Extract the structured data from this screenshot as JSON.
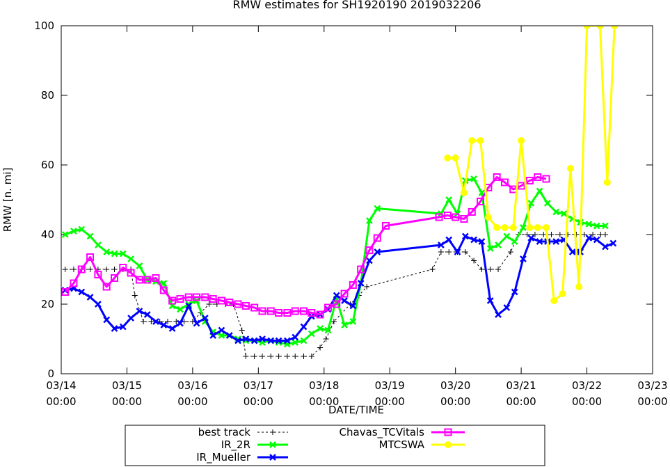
{
  "chart_data": {
    "type": "line",
    "title": "RMW estimates for SH1920190 2019032206",
    "xlabel": "DATE/TIME",
    "ylabel": "RMW [n. mi]",
    "xlim": [
      0,
      9
    ],
    "ylim": [
      0,
      100
    ],
    "grid": false,
    "legend_position": "bottom",
    "x_ticks": [
      {
        "value": 0,
        "line1": "03/14",
        "line2": "00:00"
      },
      {
        "value": 1,
        "line1": "03/15",
        "line2": "00:00"
      },
      {
        "value": 2,
        "line1": "03/16",
        "line2": "00:00"
      },
      {
        "value": 3,
        "line1": "03/17",
        "line2": "00:00"
      },
      {
        "value": 4,
        "line1": "03/18",
        "line2": "00:00"
      },
      {
        "value": 5,
        "line1": "03/19",
        "line2": "00:00"
      },
      {
        "value": 6,
        "line1": "03/20",
        "line2": "00:00"
      },
      {
        "value": 7,
        "line1": "03/21",
        "line2": "00:00"
      },
      {
        "value": 8,
        "line1": "03/22",
        "line2": "00:00"
      },
      {
        "value": 9,
        "line1": "03/23",
        "line2": "00:00"
      }
    ],
    "y_ticks": [
      0,
      20,
      40,
      60,
      80,
      100
    ],
    "series": [
      {
        "name": "best track",
        "color": "#000000",
        "marker": "plus",
        "dashed": true,
        "points": [
          [
            0.06,
            30
          ],
          [
            0.19,
            30
          ],
          [
            0.31,
            30
          ],
          [
            0.44,
            30
          ],
          [
            0.56,
            30
          ],
          [
            0.69,
            30
          ],
          [
            0.81,
            30
          ],
          [
            0.94,
            30
          ],
          [
            1.06,
            30
          ],
          [
            1.12,
            22.5
          ],
          [
            1.25,
            15
          ],
          [
            1.37,
            15
          ],
          [
            1.5,
            15
          ],
          [
            1.62,
            15
          ],
          [
            1.75,
            15
          ],
          [
            1.87,
            15
          ],
          [
            2,
            15
          ],
          [
            2.12,
            17.5
          ],
          [
            2.25,
            20
          ],
          [
            2.37,
            20
          ],
          [
            2.5,
            20
          ],
          [
            2.62,
            20
          ],
          [
            2.75,
            12.5
          ],
          [
            2.81,
            5
          ],
          [
            2.94,
            5
          ],
          [
            3.06,
            5
          ],
          [
            3.19,
            5
          ],
          [
            3.31,
            5
          ],
          [
            3.44,
            5
          ],
          [
            3.56,
            5
          ],
          [
            3.69,
            5
          ],
          [
            3.81,
            5
          ],
          [
            3.94,
            7.5
          ],
          [
            4.03,
            10
          ],
          [
            4.15,
            15
          ],
          [
            4.4,
            20
          ],
          [
            4.53,
            22.5
          ],
          [
            4.65,
            25
          ],
          [
            5.65,
            30
          ],
          [
            5.78,
            35
          ],
          [
            5.9,
            35
          ],
          [
            6.03,
            35
          ],
          [
            6.15,
            35
          ],
          [
            6.28,
            32.5
          ],
          [
            6.4,
            30
          ],
          [
            6.53,
            30
          ],
          [
            6.65,
            30
          ],
          [
            6.84,
            35
          ],
          [
            6.96,
            40
          ],
          [
            7.09,
            40
          ],
          [
            7.21,
            40
          ],
          [
            7.34,
            40
          ],
          [
            7.46,
            40
          ],
          [
            7.59,
            40
          ],
          [
            7.71,
            40
          ],
          [
            7.84,
            40
          ],
          [
            7.96,
            40
          ],
          [
            8.09,
            40
          ],
          [
            8.21,
            40
          ],
          [
            8.28,
            40
          ]
        ]
      },
      {
        "name": "IR_2R",
        "color": "#00ff00",
        "marker": "x",
        "dashed": false,
        "points": [
          [
            0.06,
            40
          ],
          [
            0.19,
            41
          ],
          [
            0.31,
            41.5
          ],
          [
            0.44,
            39.5
          ],
          [
            0.56,
            37
          ],
          [
            0.69,
            35
          ],
          [
            0.81,
            34.5
          ],
          [
            0.94,
            34.5
          ],
          [
            1.06,
            33
          ],
          [
            1.19,
            31
          ],
          [
            1.31,
            27
          ],
          [
            1.44,
            26.5
          ],
          [
            1.56,
            26
          ],
          [
            1.69,
            19.5
          ],
          [
            1.81,
            18.5
          ],
          [
            1.94,
            20
          ],
          [
            2.06,
            21
          ],
          [
            2.19,
            15
          ],
          [
            2.31,
            12
          ],
          [
            2.44,
            11
          ],
          [
            2.56,
            11
          ],
          [
            2.69,
            10
          ],
          [
            2.81,
            9.5
          ],
          [
            2.94,
            9.5
          ],
          [
            3.06,
            9
          ],
          [
            3.19,
            9.5
          ],
          [
            3.31,
            9
          ],
          [
            3.44,
            8.5
          ],
          [
            3.56,
            9
          ],
          [
            3.69,
            9.5
          ],
          [
            3.81,
            11.5
          ],
          [
            3.94,
            13
          ],
          [
            4.06,
            12.5
          ],
          [
            4.19,
            21.5
          ],
          [
            4.31,
            14
          ],
          [
            4.44,
            15
          ],
          [
            4.56,
            26
          ],
          [
            4.69,
            44
          ],
          [
            4.81,
            47.5
          ],
          [
            5.78,
            46
          ],
          [
            5.9,
            50
          ],
          [
            6.03,
            46
          ],
          [
            6.15,
            55.5
          ],
          [
            6.28,
            56
          ],
          [
            6.4,
            52
          ],
          [
            6.53,
            36
          ],
          [
            6.65,
            37
          ],
          [
            6.78,
            39.5
          ],
          [
            6.9,
            38
          ],
          [
            7.03,
            42
          ],
          [
            7.15,
            49
          ],
          [
            7.28,
            52.5
          ],
          [
            7.4,
            49
          ],
          [
            7.53,
            46.5
          ],
          [
            7.65,
            46
          ],
          [
            7.78,
            44.5
          ],
          [
            7.9,
            43.5
          ],
          [
            8.03,
            43
          ],
          [
            8.15,
            42.5
          ],
          [
            8.28,
            42.5
          ]
        ]
      },
      {
        "name": "IR_Mueller",
        "color": "#0000ff",
        "marker": "x",
        "dashed": false,
        "points": [
          [
            0.06,
            24
          ],
          [
            0.19,
            24.5
          ],
          [
            0.31,
            23.5
          ],
          [
            0.44,
            22
          ],
          [
            0.56,
            20
          ],
          [
            0.69,
            15.5
          ],
          [
            0.81,
            13
          ],
          [
            0.94,
            13.5
          ],
          [
            1.06,
            16
          ],
          [
            1.19,
            18
          ],
          [
            1.31,
            17
          ],
          [
            1.44,
            15
          ],
          [
            1.56,
            14
          ],
          [
            1.69,
            13
          ],
          [
            1.81,
            14.5
          ],
          [
            1.94,
            19.5
          ],
          [
            2.06,
            14.5
          ],
          [
            2.19,
            16
          ],
          [
            2.31,
            11
          ],
          [
            2.44,
            12.5
          ],
          [
            2.56,
            11
          ],
          [
            2.69,
            9.5
          ],
          [
            2.81,
            10
          ],
          [
            2.94,
            9.5
          ],
          [
            3.06,
            10
          ],
          [
            3.19,
            9.5
          ],
          [
            3.31,
            9.5
          ],
          [
            3.44,
            9.5
          ],
          [
            3.56,
            10.5
          ],
          [
            3.69,
            13.5
          ],
          [
            3.81,
            16.5
          ],
          [
            3.94,
            17
          ],
          [
            4.06,
            18.5
          ],
          [
            4.19,
            22.5
          ],
          [
            4.31,
            21
          ],
          [
            4.44,
            19.5
          ],
          [
            4.56,
            26
          ],
          [
            4.69,
            32.5
          ],
          [
            4.81,
            35
          ],
          [
            5.78,
            37
          ],
          [
            5.9,
            38.5
          ],
          [
            6.03,
            35
          ],
          [
            6.15,
            39.5
          ],
          [
            6.28,
            38.5
          ],
          [
            6.4,
            38
          ],
          [
            6.53,
            21
          ],
          [
            6.65,
            17
          ],
          [
            6.78,
            19
          ],
          [
            6.9,
            23.5
          ],
          [
            7.03,
            33
          ],
          [
            7.15,
            39
          ],
          [
            7.28,
            38
          ],
          [
            7.4,
            38
          ],
          [
            7.53,
            38
          ],
          [
            7.65,
            38.5
          ],
          [
            7.78,
            35
          ],
          [
            7.9,
            35
          ],
          [
            8.03,
            39
          ],
          [
            8.15,
            38.5
          ],
          [
            8.28,
            36.5
          ],
          [
            8.4,
            37.5
          ]
        ]
      },
      {
        "name": "Chavas_TCVitals",
        "color": "#ff00ff",
        "marker": "square",
        "dashed": false,
        "points": [
          [
            0.06,
            23.5
          ],
          [
            0.19,
            26
          ],
          [
            0.31,
            30
          ],
          [
            0.44,
            33.5
          ],
          [
            0.56,
            28.5
          ],
          [
            0.69,
            25
          ],
          [
            0.81,
            27.5
          ],
          [
            0.94,
            30.5
          ],
          [
            1.06,
            29
          ],
          [
            1.19,
            27
          ],
          [
            1.31,
            27
          ],
          [
            1.44,
            27.5
          ],
          [
            1.56,
            24
          ],
          [
            1.69,
            21
          ],
          [
            1.81,
            21.5
          ],
          [
            1.94,
            22
          ],
          [
            2.06,
            22
          ],
          [
            2.19,
            22
          ],
          [
            2.31,
            21.5
          ],
          [
            2.44,
            21
          ],
          [
            2.56,
            20.5
          ],
          [
            2.69,
            20
          ],
          [
            2.81,
            19.5
          ],
          [
            2.94,
            19
          ],
          [
            3.06,
            18
          ],
          [
            3.19,
            18
          ],
          [
            3.31,
            17.5
          ],
          [
            3.44,
            17.5
          ],
          [
            3.56,
            18
          ],
          [
            3.69,
            18
          ],
          [
            3.81,
            17.5
          ],
          [
            3.94,
            17
          ],
          [
            4.06,
            19
          ],
          [
            4.19,
            20
          ],
          [
            4.31,
            23
          ],
          [
            4.44,
            25.5
          ],
          [
            4.56,
            30
          ],
          [
            4.69,
            35.5
          ],
          [
            4.81,
            39
          ],
          [
            4.94,
            42.5
          ],
          [
            5.75,
            45
          ],
          [
            5.88,
            45.5
          ],
          [
            6,
            45
          ],
          [
            6.13,
            44.5
          ],
          [
            6.25,
            46.5
          ],
          [
            6.38,
            49.5
          ],
          [
            6.5,
            53.5
          ],
          [
            6.63,
            56.5
          ],
          [
            6.75,
            55
          ],
          [
            6.88,
            53
          ],
          [
            7,
            54
          ],
          [
            7.13,
            55.5
          ],
          [
            7.25,
            56.5
          ],
          [
            7.38,
            56
          ]
        ]
      },
      {
        "name": "MTCSWA",
        "color": "#ffff00",
        "marker": "circle",
        "dashed": false,
        "points": [
          [
            5.88,
            62
          ],
          [
            6,
            62
          ],
          [
            6.13,
            52
          ],
          [
            6.25,
            67
          ],
          [
            6.38,
            67
          ],
          [
            6.5,
            45
          ],
          [
            6.63,
            42
          ],
          [
            6.75,
            42
          ],
          [
            6.88,
            42
          ],
          [
            7,
            67
          ],
          [
            7.13,
            42
          ],
          [
            7.25,
            42
          ],
          [
            7.38,
            42
          ],
          [
            7.5,
            21
          ],
          [
            7.63,
            23
          ],
          [
            7.75,
            59
          ],
          [
            7.88,
            25
          ],
          [
            8,
            100
          ],
          [
            8.2,
            100
          ],
          [
            8.31,
            55
          ],
          [
            8.42,
            100
          ]
        ]
      }
    ]
  }
}
